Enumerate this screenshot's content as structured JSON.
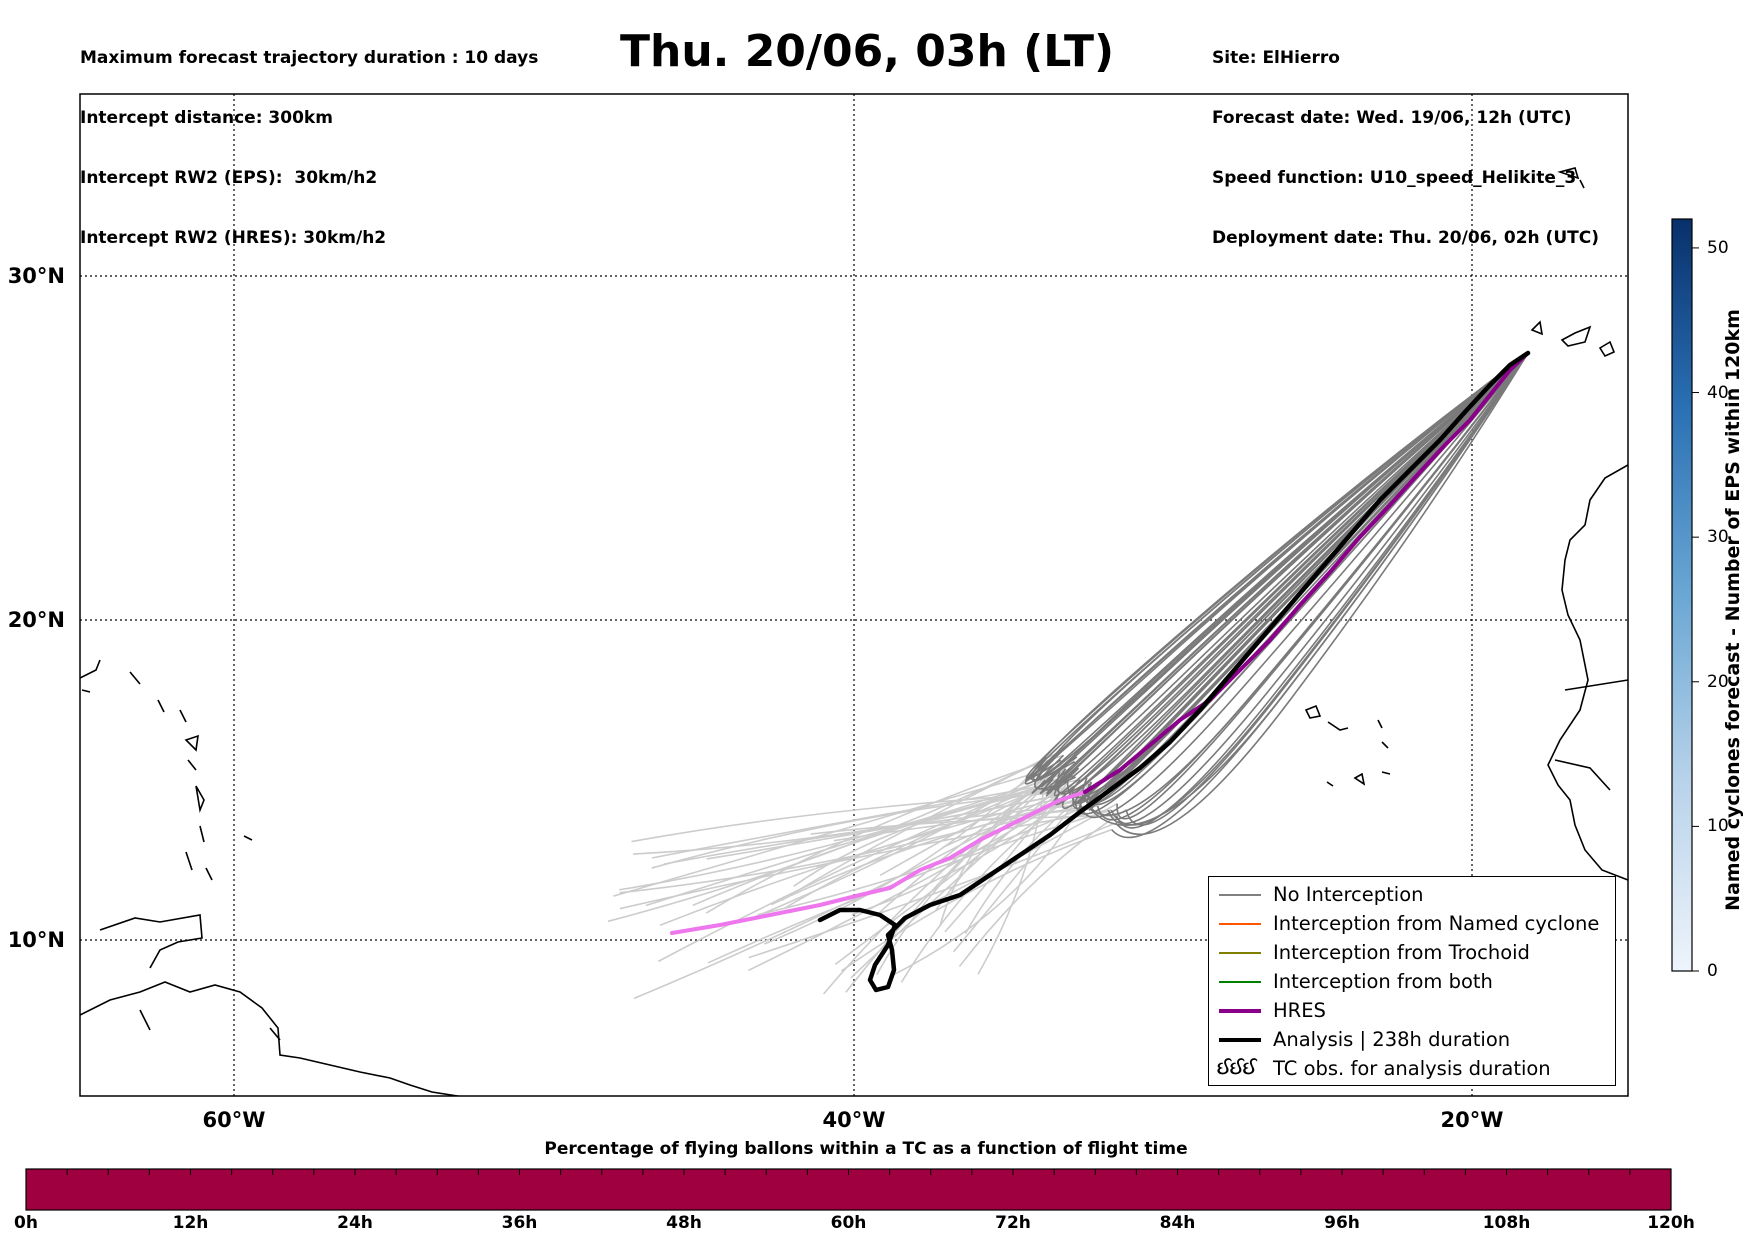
{
  "header": {
    "left_lines": [
      "Maximum forecast trajectory duration : 10 days",
      "Intercept distance: 300km",
      "Intercept RW2 (EPS):  30km/h2",
      "Intercept RW2 (HRES): 30km/h2"
    ],
    "title": "Thu. 20/06, 03h (LT)",
    "right_lines": [
      "Site: ElHierro",
      "Forecast date: Wed. 19/06, 12h (UTC)",
      "Speed function: U10_speed_Helikite_3",
      "Deployment date: Thu. 20/06, 02h (UTC)"
    ]
  },
  "map": {
    "lat_labels": [
      "30°N",
      "20°N",
      "10°N"
    ],
    "lon_labels": [
      "60°W",
      "40°W",
      "20°W"
    ],
    "site": "ElHierro",
    "deployment_point": {
      "lon": -18.1,
      "lat": 27.7
    }
  },
  "legend": {
    "items": [
      {
        "label": "No Interception",
        "color": "#808080",
        "style": "thin"
      },
      {
        "label": "Interception from Named cyclone",
        "color": "#ff5500",
        "style": "thin"
      },
      {
        "label": "Interception from Trochoid",
        "color": "#808000",
        "style": "thin"
      },
      {
        "label": "Interception from both",
        "color": "#008000",
        "style": "thin"
      },
      {
        "label": "HRES",
        "color": "#8b008b",
        "style": "thick"
      },
      {
        "label": "Analysis | 238h duration",
        "color": "#000000",
        "style": "thick"
      }
    ],
    "tc_symbol": "ઈઈઈ",
    "tc_label": "TC obs. for analysis duration"
  },
  "colorbar": {
    "label": "Named cyclones forecast - Number of EPS within 120km",
    "min": 0,
    "max": 52,
    "ticks": [
      "0",
      "10",
      "20",
      "30",
      "40",
      "50"
    ],
    "colors": {
      "low": "#e8f0f8",
      "high": "#0a3a6e"
    }
  },
  "percentage_bar": {
    "title": "Percentage of flying ballons within a TC as a function of flight time",
    "ticks": [
      "0h",
      "12h",
      "24h",
      "36h",
      "48h",
      "60h",
      "72h",
      "84h",
      "96h",
      "108h",
      "120h"
    ],
    "fill_color": "#9e0040",
    "percent_values": [
      0,
      0,
      0,
      0,
      0,
      0,
      0,
      0,
      0,
      0,
      0
    ]
  },
  "colors": {
    "eps_far": "#cccccc",
    "eps_near": "#7a7a7a",
    "hres_near": "#8b008b",
    "hres_far": "#ee77ee",
    "analysis": "#000000",
    "coast": "#000000"
  }
}
